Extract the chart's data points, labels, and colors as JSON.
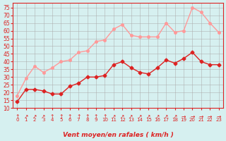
{
  "x": [
    0,
    1,
    2,
    3,
    4,
    5,
    6,
    7,
    8,
    9,
    10,
    11,
    12,
    13,
    14,
    15,
    16,
    17,
    18,
    19,
    20,
    21,
    22,
    23
  ],
  "wind_avg": [
    14,
    22,
    22,
    21,
    19,
    19,
    24,
    26,
    30,
    30,
    31,
    38,
    40,
    36,
    33,
    32,
    36,
    41,
    39,
    42,
    46,
    40,
    38,
    38
  ],
  "wind_gust": [
    18,
    29,
    37,
    33,
    36,
    40,
    41,
    46,
    47,
    53,
    54,
    61,
    64,
    57,
    56,
    56,
    56,
    65,
    59,
    60,
    75,
    72,
    65,
    59
  ],
  "xlabel": "Vent moyen/en rafales ( km/h )",
  "yticks": [
    10,
    15,
    20,
    25,
    30,
    35,
    40,
    45,
    50,
    55,
    60,
    65,
    70,
    75
  ],
  "ymin": 10,
  "ymax": 78,
  "bg_color": "#d6f0f0",
  "grid_color": "#aaaaaa",
  "avg_color": "#dd2222",
  "gust_color": "#ff9999",
  "arrow_symbols": [
    "↑",
    "↗",
    "↗",
    "↗",
    "↑",
    "↑",
    "↑",
    "↑",
    "↑",
    "↑",
    "↑",
    "↗",
    "↗",
    "↗",
    "↗",
    "↗",
    "↗",
    "↗",
    "↗",
    "→",
    "→",
    "→",
    "→",
    "→"
  ]
}
